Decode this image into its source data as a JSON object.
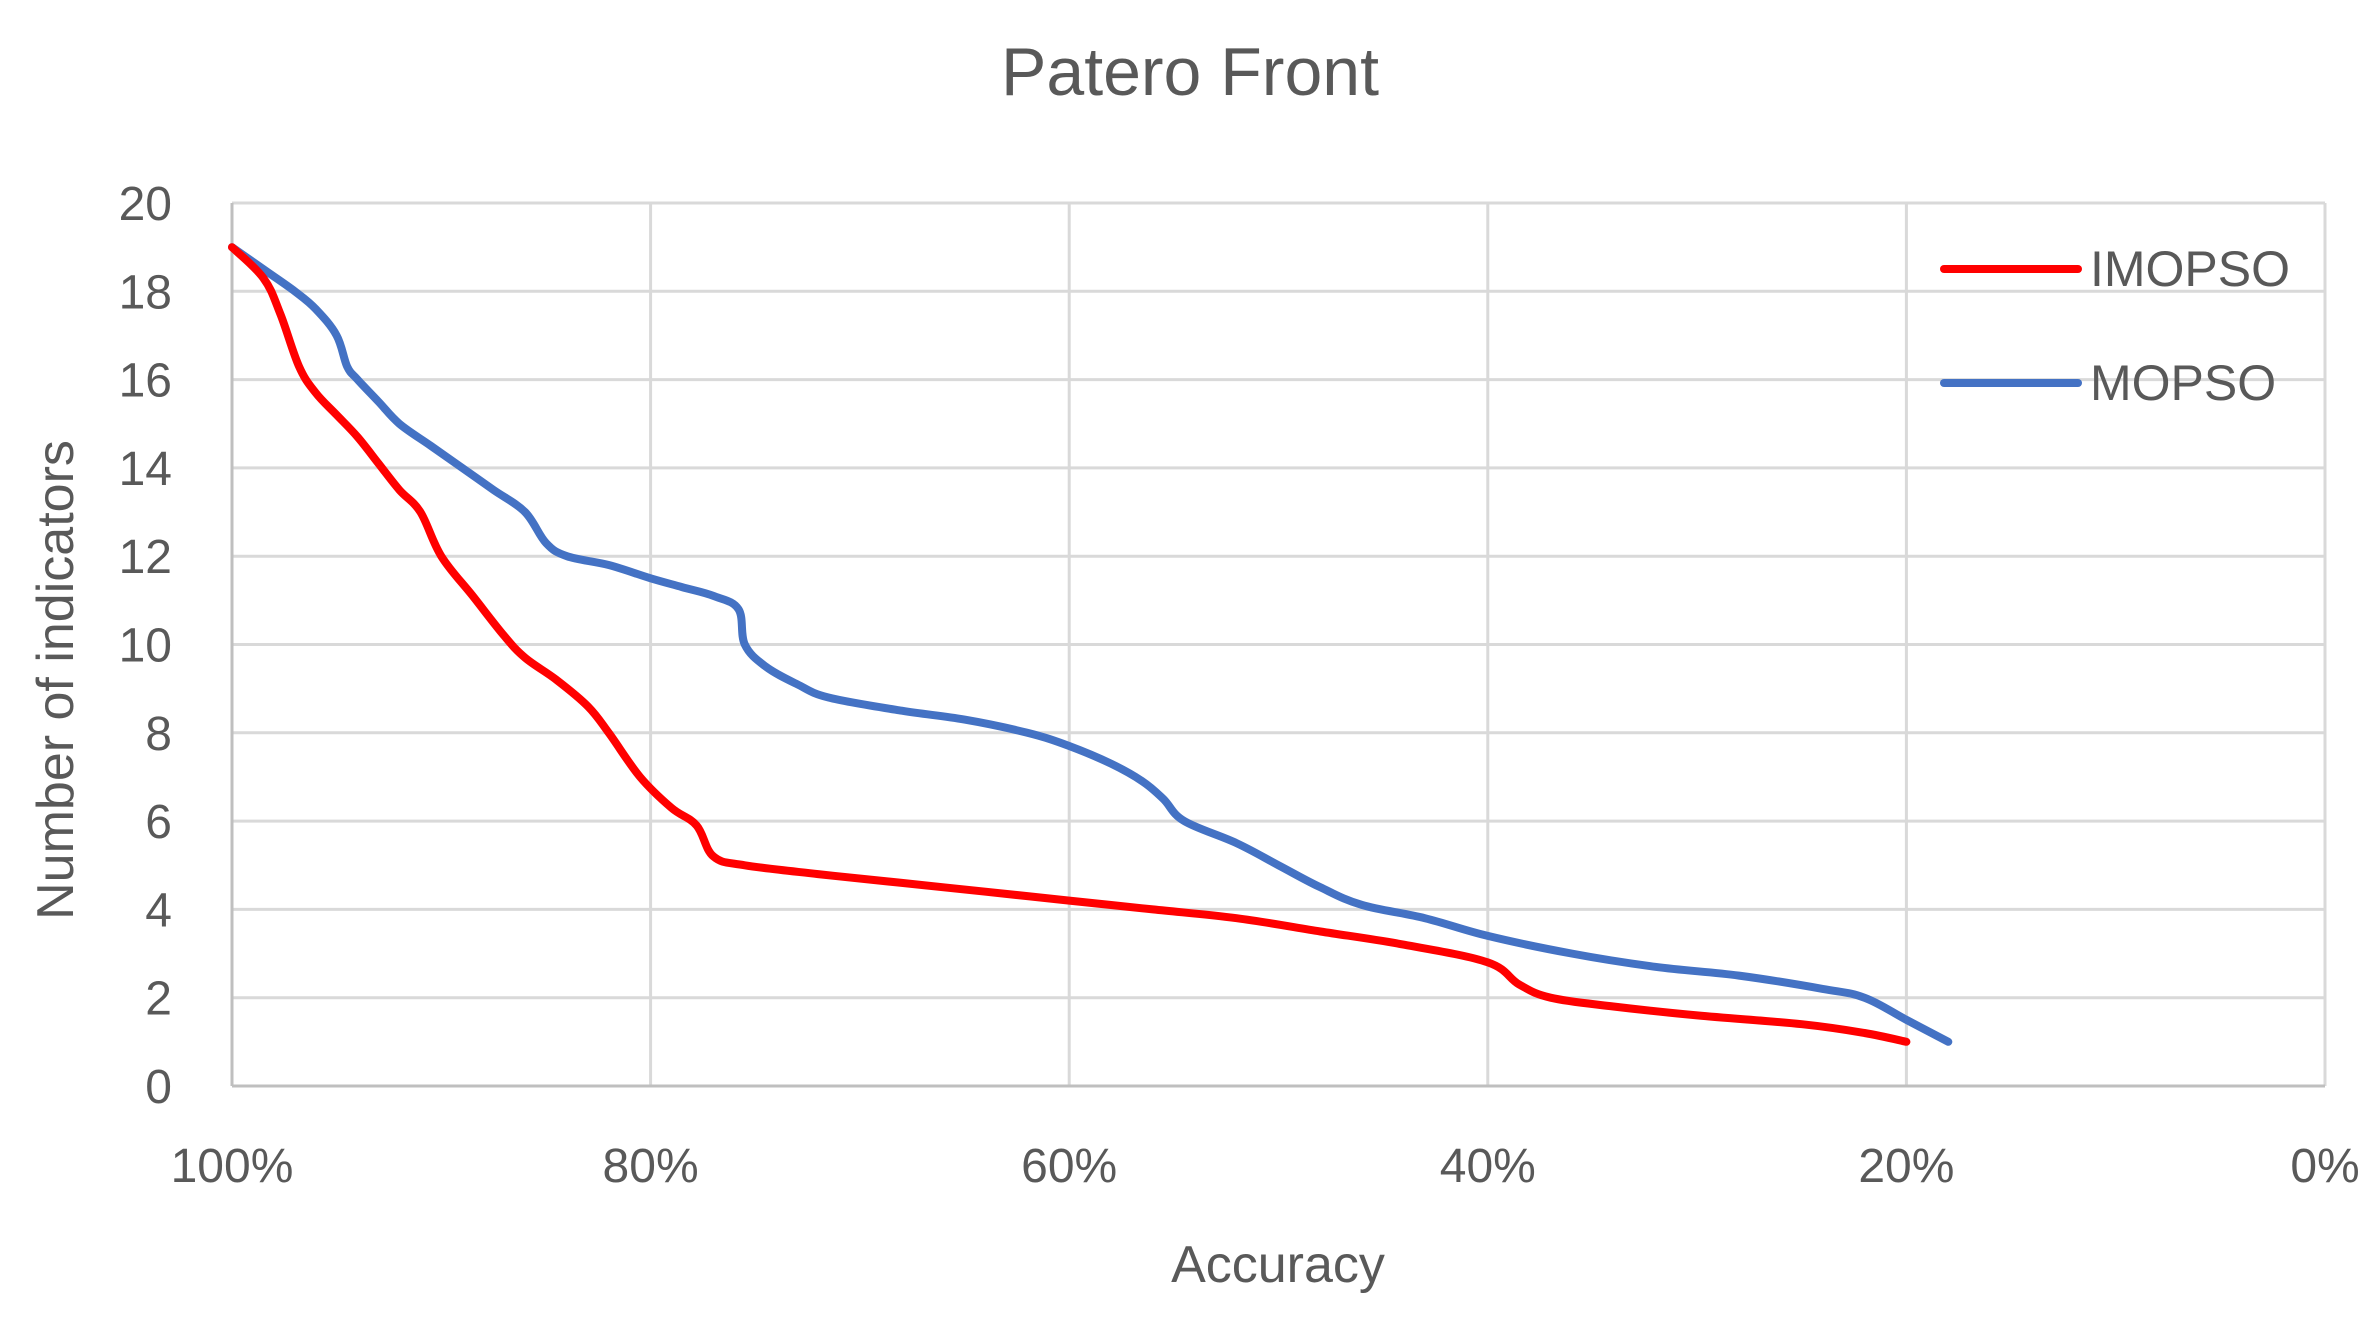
{
  "chart_data": {
    "type": "line",
    "title": "Patero Front",
    "xlabel": "Accuracy",
    "ylabel": "Number of indicators",
    "x_unit": "%",
    "x_reversed": true,
    "xlim": [
      0,
      100
    ],
    "ylim": [
      0,
      20
    ],
    "x_ticks": [
      "100%",
      "80%",
      "60%",
      "40%",
      "20%",
      "0%"
    ],
    "x_tick_values": [
      100,
      80,
      60,
      40,
      20,
      0
    ],
    "y_ticks": [
      "0",
      "2",
      "4",
      "6",
      "8",
      "10",
      "12",
      "14",
      "16",
      "18",
      "20"
    ],
    "y_tick_values": [
      0,
      2,
      4,
      6,
      8,
      10,
      12,
      14,
      16,
      18,
      20
    ],
    "grid": true,
    "legend_position": "top-right",
    "series": [
      {
        "name": "IMOPSO",
        "color": "#ff0000",
        "points": [
          [
            100,
            19
          ],
          [
            98.5,
            18.3
          ],
          [
            97.7,
            17.5
          ],
          [
            96.8,
            16.3
          ],
          [
            96,
            15.7
          ],
          [
            95,
            15.2
          ],
          [
            94,
            14.7
          ],
          [
            93,
            14.1
          ],
          [
            92,
            13.5
          ],
          [
            91,
            13
          ],
          [
            90,
            12
          ],
          [
            88.5,
            11.1
          ],
          [
            87,
            10.2
          ],
          [
            86,
            9.7
          ],
          [
            84.5,
            9.2
          ],
          [
            83,
            8.6
          ],
          [
            82,
            8
          ],
          [
            80.5,
            7
          ],
          [
            79,
            6.3
          ],
          [
            77.8,
            5.9
          ],
          [
            77,
            5.2
          ],
          [
            75.5,
            5
          ],
          [
            72,
            4.8
          ],
          [
            68,
            4.6
          ],
          [
            64,
            4.4
          ],
          [
            60,
            4.2
          ],
          [
            56,
            4
          ],
          [
            52,
            3.8
          ],
          [
            48,
            3.5
          ],
          [
            44,
            3.2
          ],
          [
            40,
            2.8
          ],
          [
            38.5,
            2.3
          ],
          [
            37,
            2
          ],
          [
            34,
            1.8
          ],
          [
            30,
            1.6
          ],
          [
            25,
            1.4
          ],
          [
            22,
            1.2
          ],
          [
            20,
            1
          ]
        ]
      },
      {
        "name": "MOPSO",
        "color": "#4472c4",
        "points": [
          [
            100,
            19
          ],
          [
            98.5,
            18.5
          ],
          [
            97,
            18
          ],
          [
            96,
            17.6
          ],
          [
            95,
            17
          ],
          [
            94.5,
            16.3
          ],
          [
            94,
            16
          ],
          [
            93,
            15.5
          ],
          [
            92,
            15
          ],
          [
            90.5,
            14.5
          ],
          [
            89,
            14
          ],
          [
            87.5,
            13.5
          ],
          [
            86,
            13
          ],
          [
            85,
            12.3
          ],
          [
            84,
            12
          ],
          [
            82,
            11.8
          ],
          [
            80,
            11.5
          ],
          [
            78.5,
            11.3
          ],
          [
            77,
            11.1
          ],
          [
            75.8,
            10.8
          ],
          [
            75.5,
            10
          ],
          [
            74.5,
            9.5
          ],
          [
            73,
            9.1
          ],
          [
            71.5,
            8.8
          ],
          [
            68,
            8.5
          ],
          [
            65,
            8.3
          ],
          [
            62,
            8
          ],
          [
            60,
            7.7
          ],
          [
            58,
            7.3
          ],
          [
            56.5,
            6.9
          ],
          [
            55.5,
            6.5
          ],
          [
            54.5,
            6
          ],
          [
            52,
            5.5
          ],
          [
            50,
            5
          ],
          [
            48,
            4.5
          ],
          [
            46,
            4.1
          ],
          [
            43,
            3.8
          ],
          [
            40,
            3.4
          ],
          [
            36,
            3
          ],
          [
            32,
            2.7
          ],
          [
            28,
            2.5
          ],
          [
            24,
            2.2
          ],
          [
            22,
            2
          ],
          [
            20,
            1.5
          ],
          [
            18,
            1
          ]
        ]
      }
    ]
  }
}
